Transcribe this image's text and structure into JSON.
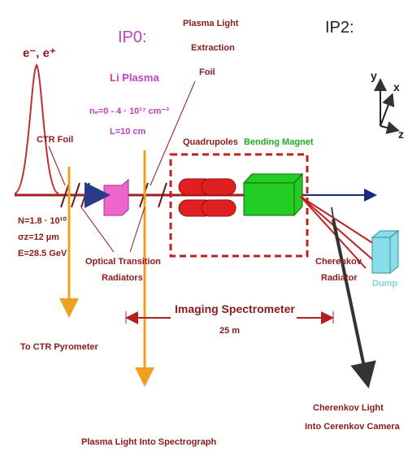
{
  "beam": "e⁻, e⁺",
  "ctr_foil": "CTR Foil",
  "ip0": {
    "title": "IP0:",
    "plasma": "Li Plasma",
    "density": "nₑ=0 - 4 · 10¹⁷ cm⁻³",
    "length": "L=10 cm"
  },
  "extraction_foil": [
    "Plasma Light",
    "Extraction",
    "Foil"
  ],
  "ip2": "IP2:",
  "axes": {
    "y": "y",
    "x": "x",
    "z": "z"
  },
  "quadrupoles": "Quadrupoles",
  "bending_magnet": "Bending Magnet",
  "beam_params": [
    "N=1.8 · 10¹⁰",
    "σz=12 µm",
    "E=28.5 GeV"
  ],
  "otr": [
    "Optical Transition",
    "Radiators"
  ],
  "spectrometer": {
    "title": "Imaging Spectrometer",
    "length": "25 m"
  },
  "cherenkov_radiator": [
    "Cherenkov",
    "Radiator"
  ],
  "dump": "Dump",
  "ctr_pyrometer": "To CTR Pyrometer",
  "cherenkov_light": [
    "Cherenkov Light",
    "Into Cerenkov Camera"
  ],
  "plasma_light": "Plasma Light Into Spectrograph"
}
